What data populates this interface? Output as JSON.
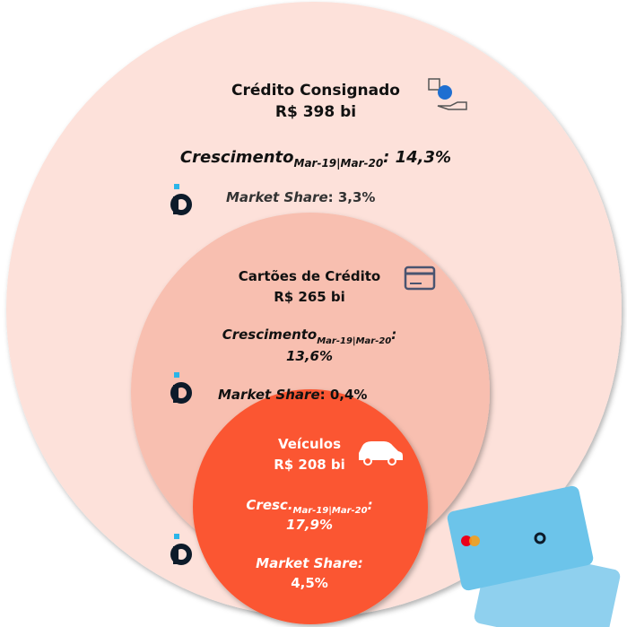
{
  "segments": [
    {
      "name": "Crédito Consignado",
      "amount": "R$ 398 bi",
      "growth_label": "Crescimento",
      "growth_period": "Mar-19|Mar-20",
      "growth_value": ": 14,3%",
      "share_label": "Market Share",
      "share_value": ": 3,3%"
    },
    {
      "name": "Cartões de Crédito",
      "amount": "R$ 265 bi",
      "growth_label": "Crescimento",
      "growth_period": "Mar-19|Mar-20",
      "growth_colon": ":",
      "growth_value": "13,6%",
      "share_label": "Market Share",
      "share_value": ": 0,4%"
    },
    {
      "name": "Veículos",
      "amount": "R$ 208 bi",
      "growth_label": "Cresc.",
      "growth_period": "Mar-19|Mar-20",
      "growth_colon": ":",
      "growth_value": "17,9%",
      "share_label": "Market Share:",
      "share_value": "4,5%"
    }
  ]
}
